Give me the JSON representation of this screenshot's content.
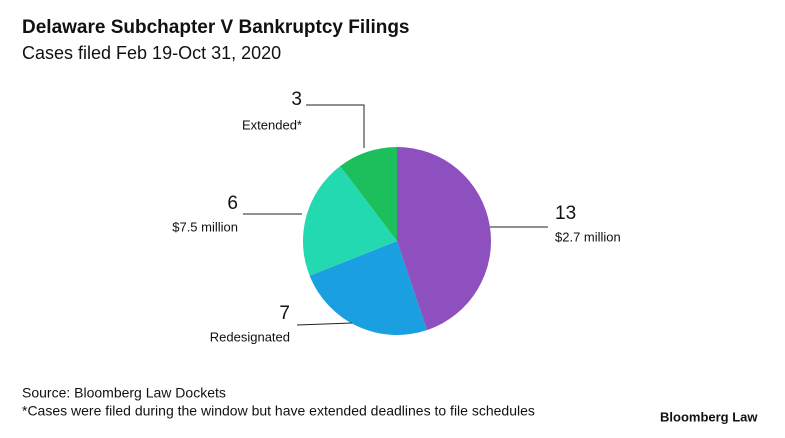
{
  "chart_data": {
    "type": "pie",
    "title": "Delaware Subchapter V Bankruptcy Filings",
    "subtitle": "Cases filed Feb 19-Oct 31, 2020",
    "categories": [
      "$2.7 million",
      "Redesignated",
      "$7.5 million",
      "Extended*"
    ],
    "values": [
      13,
      7,
      6,
      3
    ],
    "colors": [
      "#8e4fbf",
      "#1a9fe0",
      "#22d9b0",
      "#1cbf5c"
    ],
    "source": "Source: Bloomberg Law Dockets",
    "note": "*Cases were filed during the window but have extended deadlines to file schedules",
    "logo": "Bloomberg Law"
  }
}
